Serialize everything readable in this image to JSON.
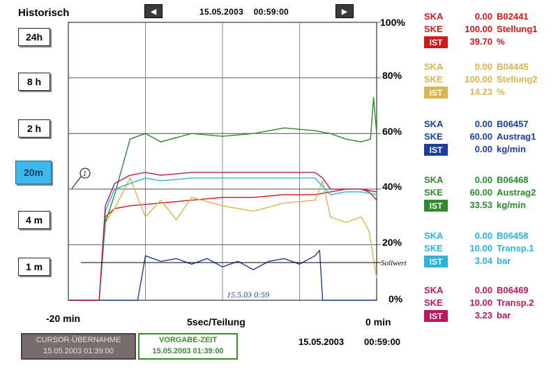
{
  "header": {
    "title": "Historisch",
    "prev_icon": "◀",
    "next_icon": "▶",
    "datetime": "15.05.2003    00:59:00"
  },
  "range_buttons": [
    "24h",
    "8 h",
    "2 h",
    "20m",
    "4 m",
    "1 m"
  ],
  "active_range": "20m",
  "axis": {
    "pct_ticks": [
      "100%",
      "80%",
      "60%",
      "40%",
      "20%",
      "0%"
    ],
    "x_start": "-20 min",
    "x_division": "5sec/Teilung",
    "x_end": "0 min"
  },
  "annotations": {
    "marker": "1",
    "sollwert": "Sollwert",
    "handwritten_date": "15.5.03 0:59"
  },
  "legend": [
    {
      "color": "#cc1a1a",
      "ska_label": "SKA",
      "ska_val": "0.00",
      "code": "B02441",
      "ske_label": "SKE",
      "ske_val": "100.00",
      "name": "Stellung1",
      "ist_label": "IST",
      "ist_val": "39.70",
      "unit": "%"
    },
    {
      "color": "#d9b44a",
      "ska_label": "SKA",
      "ska_val": "0.00",
      "code": "B04445",
      "ske_label": "SKE",
      "ske_val": "100.00",
      "name": "Stellung2",
      "ist_label": "IST",
      "ist_val": "14.23",
      "unit": "%"
    },
    {
      "color": "#1b3e9c",
      "ska_label": "SKA",
      "ska_val": "0.00",
      "code": "B06457",
      "ske_label": "SKE",
      "ske_val": "60.00",
      "name": "Austrag1",
      "ist_label": "IST",
      "ist_val": "0.00",
      "unit": "kg/min"
    },
    {
      "color": "#2e8a2e",
      "ska_label": "SKA",
      "ska_val": "0.00",
      "code": "B06468",
      "ske_label": "SKE",
      "ske_val": "60.00",
      "name": "Austrag2",
      "ist_label": "IST",
      "ist_val": "33.53",
      "unit": "kg/min"
    },
    {
      "color": "#2bb3d9",
      "ska_label": "SKA",
      "ska_val": "0.00",
      "code": "B06458",
      "ske_label": "SKE",
      "ske_val": "10.00",
      "name": "Transp.1",
      "ist_label": "IST",
      "ist_val": "3.04",
      "unit": "bar"
    },
    {
      "color": "#b8185e",
      "ska_label": "SKA",
      "ska_val": "0.00",
      "code": "B06469",
      "ske_label": "SKE",
      "ske_val": "10.00",
      "name": "Transp.2",
      "ist_label": "IST",
      "ist_val": "3.23",
      "unit": "bar"
    }
  ],
  "footer": {
    "cursor_title": "CURSOR-ÜBERNAHME",
    "cursor_value": "15.05.2003 01:39:00",
    "vorgabe_title": "VORGABE-ZEIT",
    "vorgabe_value": "15.05.2003 01:39:00",
    "date": "15.05.2003",
    "time": "00:59:00"
  },
  "chart_data": {
    "type": "line",
    "x_unit": "min",
    "xlim": [
      -20,
      0
    ],
    "ylim": [
      0,
      100
    ],
    "series": [
      {
        "name": "Stellung1",
        "color": "#cc1a1a",
        "x": [
          -20,
          -18,
          -17.6,
          -17,
          -16,
          -14,
          -12,
          -10,
          -8,
          -6,
          -4,
          -3,
          -2,
          -1,
          -0.5,
          0
        ],
        "y": [
          0,
          0,
          30,
          33,
          34,
          35,
          36,
          37,
          37,
          38,
          38,
          39,
          40,
          40,
          39,
          36
        ]
      },
      {
        "name": "Stellung2",
        "color": "#d9b44a",
        "x": [
          -20,
          -18,
          -17.6,
          -17,
          -16,
          -15,
          -14,
          -13,
          -12,
          -10,
          -8,
          -6,
          -4,
          -3.5,
          -3,
          -2,
          -1,
          -0.5,
          0
        ],
        "y": [
          0,
          0,
          28,
          33,
          44,
          30,
          36,
          29,
          37,
          34,
          32,
          35,
          36,
          43,
          30,
          28,
          30,
          25,
          8
        ]
      },
      {
        "name": "Austrag1",
        "color": "#1b3e9c",
        "x": [
          -20,
          -15.5,
          -15,
          -14,
          -13,
          -12,
          -11,
          -10,
          -9,
          -8,
          -7,
          -6,
          -5,
          -4,
          -3.7,
          -3.5,
          -3.3,
          0
        ],
        "y": [
          0,
          0,
          16,
          14,
          15,
          13,
          15,
          12,
          14,
          11,
          14,
          15,
          13,
          16,
          18,
          0,
          0,
          0
        ]
      },
      {
        "name": "Austrag2",
        "color": "#2e8a2e",
        "x": [
          -20,
          -18,
          -17.6,
          -17,
          -16,
          -15,
          -14,
          -12,
          -10,
          -8,
          -6,
          -4,
          -3,
          -2,
          -1,
          -0.4,
          -0.2,
          0
        ],
        "y": [
          0,
          0,
          28,
          38,
          58,
          60,
          57,
          60,
          59,
          60,
          62,
          61,
          60,
          58,
          57,
          58,
          73,
          60
        ]
      },
      {
        "name": "Transp.1",
        "color": "#2bb3d9",
        "x": [
          -20,
          -18,
          -17.6,
          -17,
          -16,
          -15,
          -14,
          -12,
          -10,
          -8,
          -6,
          -4,
          -3.5,
          -3,
          -2,
          -1,
          0
        ],
        "y": [
          0,
          0,
          32,
          40,
          42,
          44,
          43,
          44,
          44,
          44,
          44,
          44,
          41,
          38,
          39,
          39,
          38
        ]
      },
      {
        "name": "Transp.2",
        "color": "#b8185e",
        "x": [
          -20,
          -18,
          -17.6,
          -17,
          -16,
          -15,
          -14,
          -12,
          -10,
          -8,
          -6,
          -4,
          -3.5,
          -3,
          -2,
          -1,
          0
        ],
        "y": [
          0,
          0,
          34,
          42,
          45,
          46,
          45,
          46,
          46,
          46,
          46,
          46,
          44,
          40,
          40,
          40,
          39
        ]
      }
    ]
  }
}
